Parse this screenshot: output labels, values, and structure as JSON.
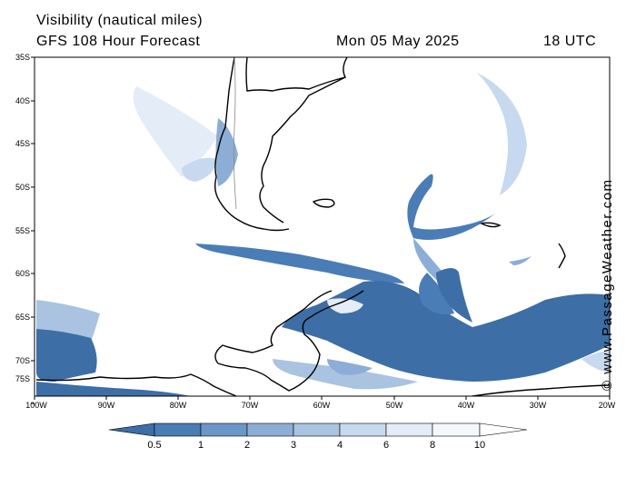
{
  "header": {
    "title_line1": "Visibility (nautical miles)",
    "title_line2": "GFS 108 Hour Forecast",
    "date": "Mon 05 May 2025",
    "time": "18 UTC"
  },
  "credit": "© www.PassageWeather.com",
  "axes": {
    "latitude_labels": [
      "35S",
      "40S",
      "45S",
      "50S",
      "55S",
      "60S",
      "65S",
      "70S",
      "75S"
    ],
    "longitude_labels": [
      "100W",
      "90W",
      "80W",
      "70W",
      "60W",
      "50W",
      "40W",
      "30W",
      "20W"
    ]
  },
  "legend": {
    "values": [
      "0.5",
      "1",
      "2",
      "3",
      "4",
      "6",
      "8",
      "10"
    ],
    "colors": [
      "#3d6ea6",
      "#4a7cb6",
      "#6b96c8",
      "#8caed6",
      "#a9c3e1",
      "#c7d9ee",
      "#e3ecf7",
      "#f4f8fc",
      "#ffffff"
    ]
  },
  "colors": {
    "low_visibility": "#3d6ea6",
    "mid_visibility": "#8caed6",
    "light_visibility": "#c7d9ee",
    "coastline": "#000000",
    "border": "#888888"
  }
}
